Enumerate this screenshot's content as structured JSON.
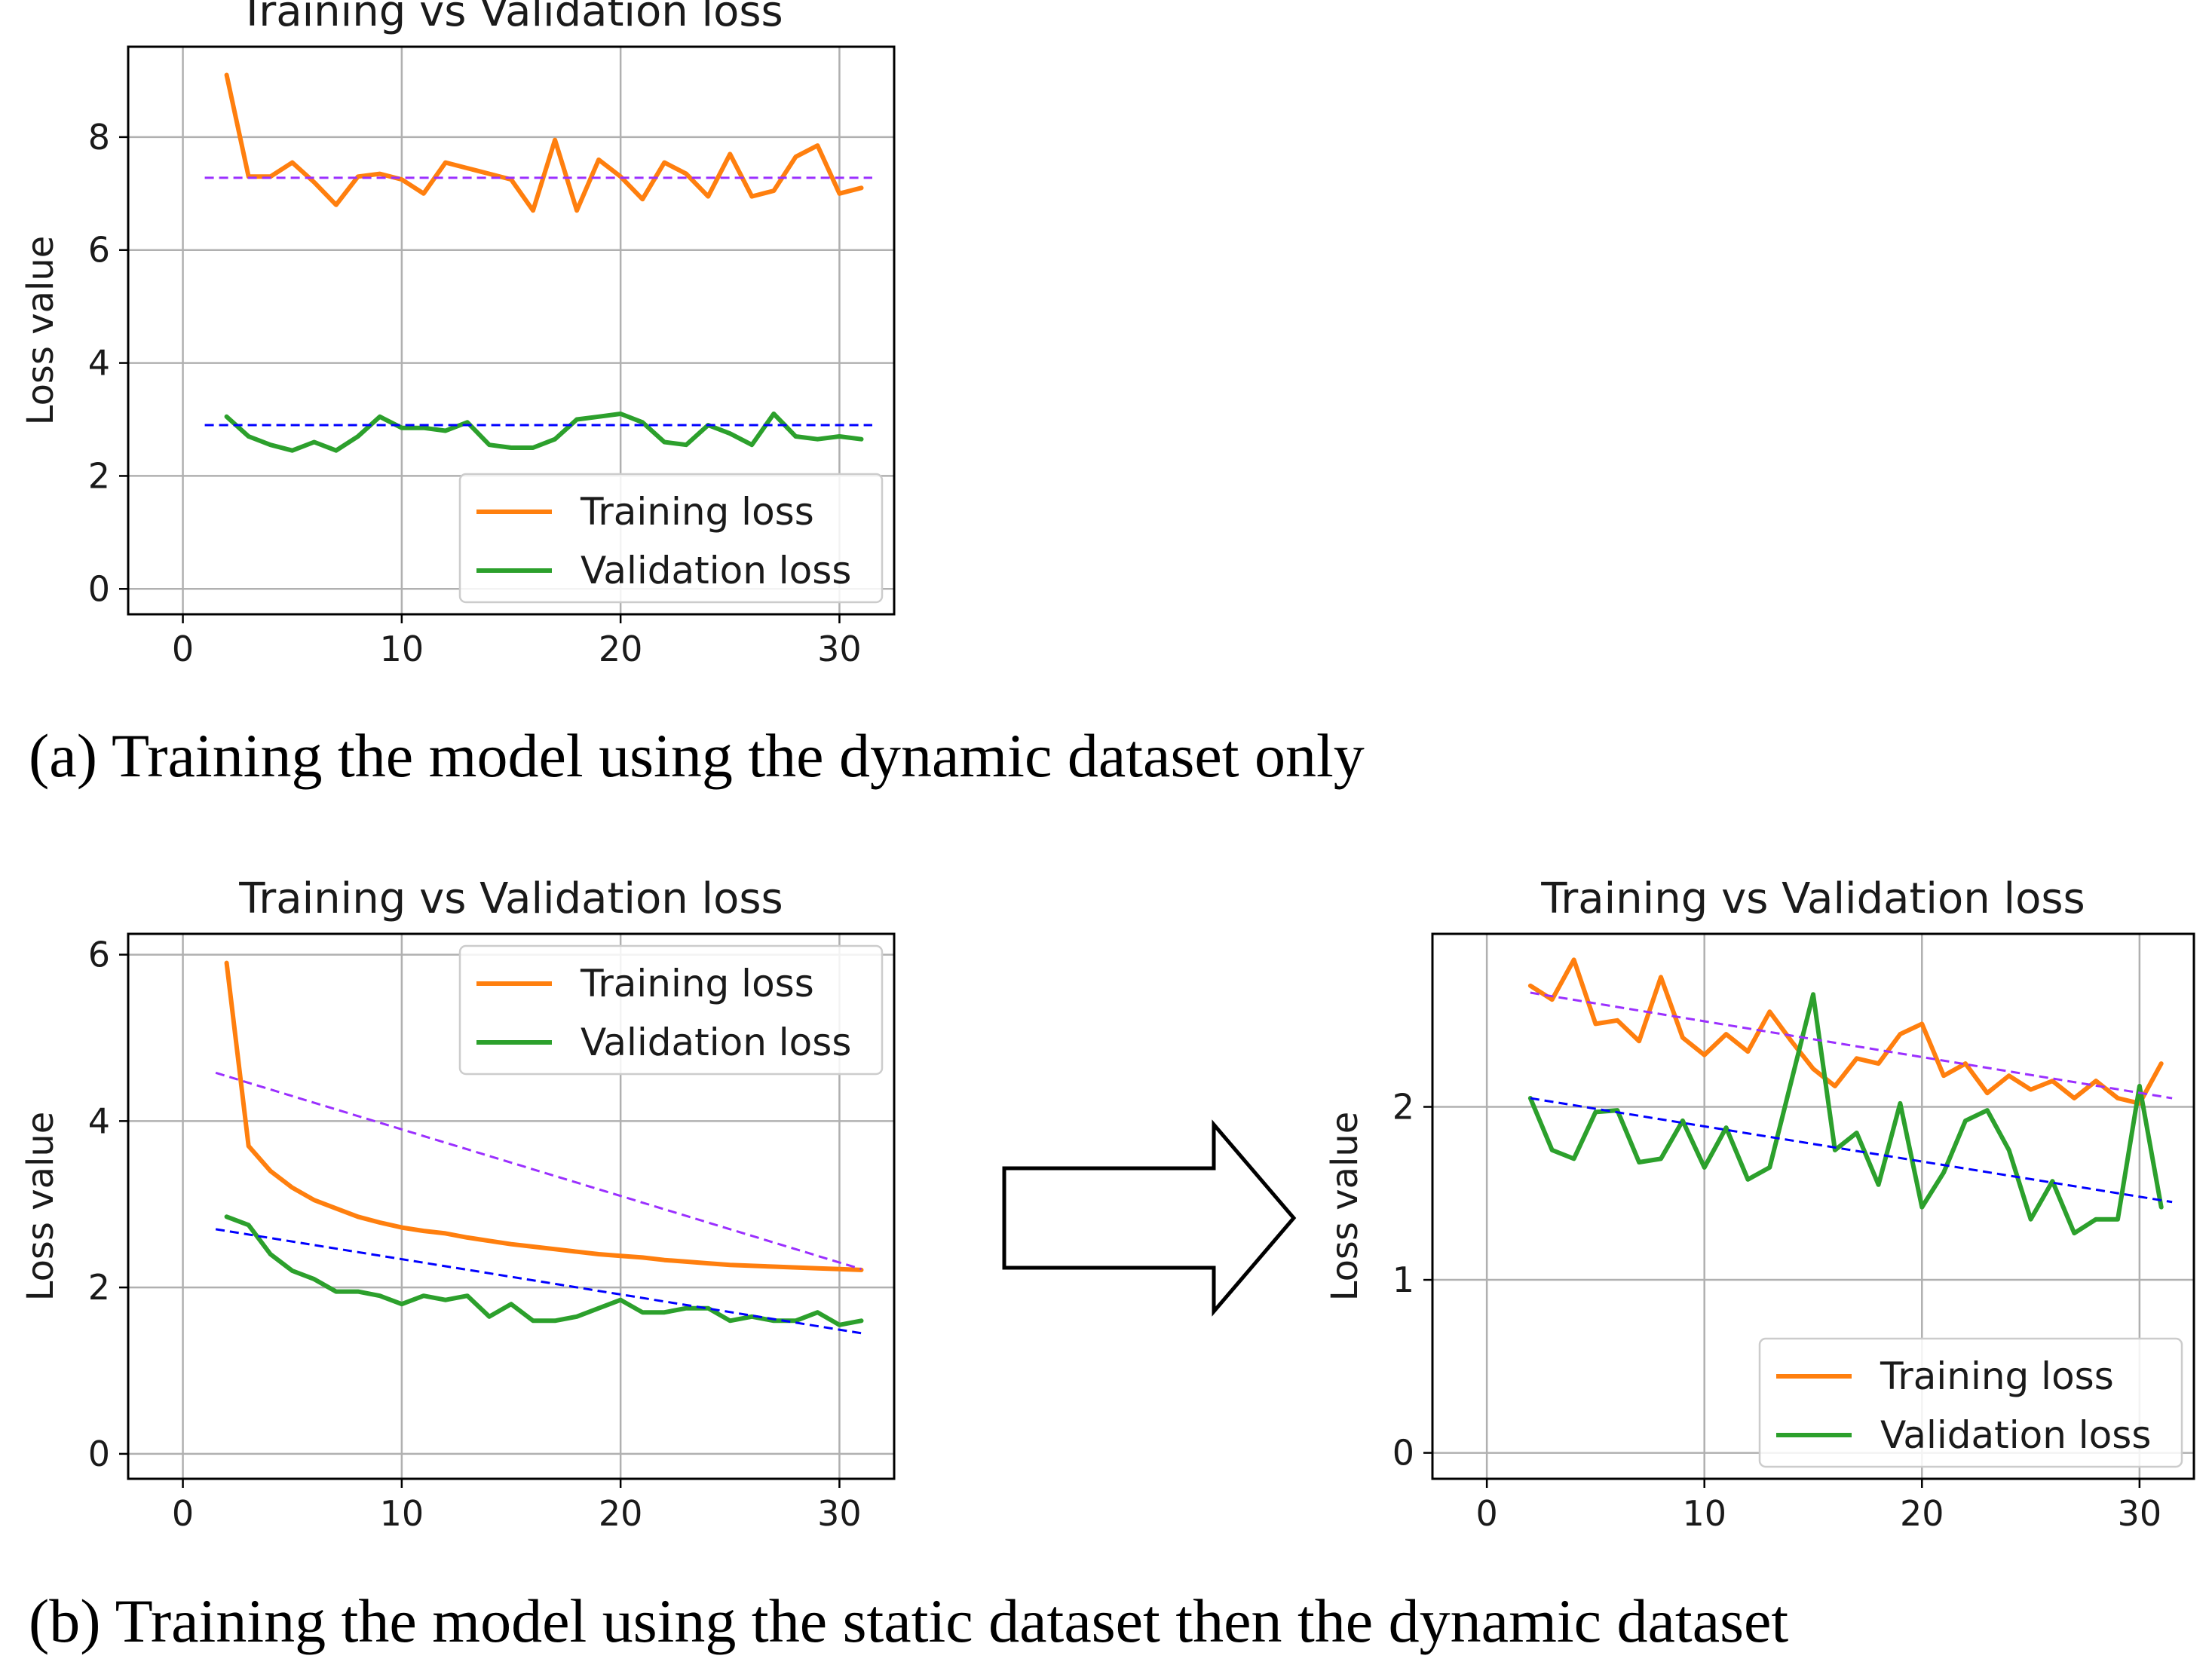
{
  "captions": {
    "a": "(a) Training the model using the dynamic dataset only",
    "b": "(b) Training the model using the static dataset then the dynamic dataset"
  },
  "colors": {
    "training": "#ff7f0e",
    "validation": "#2ca02c",
    "training_trend": "#9b30ff",
    "validation_trend": "#0000ff"
  },
  "chart_data": [
    {
      "id": "a",
      "type": "line",
      "title": "Training vs Validation loss",
      "xlabel": "",
      "ylabel": "Loss value",
      "xlim": [
        -2.5,
        32.5
      ],
      "ylim": [
        -0.45,
        9.6
      ],
      "xticks": [
        0,
        10,
        20,
        30
      ],
      "yticks": [
        0,
        2,
        4,
        6,
        8
      ],
      "grid": true,
      "legend": {
        "position": "lower-right",
        "entries": [
          "Training loss",
          "Validation loss"
        ]
      },
      "x": [
        2,
        3,
        4,
        5,
        6,
        7,
        8,
        9,
        10,
        11,
        12,
        13,
        14,
        15,
        16,
        17,
        18,
        19,
        20,
        21,
        22,
        23,
        24,
        25,
        26,
        27,
        28,
        29,
        30,
        31
      ],
      "series": [
        {
          "name": "Training loss",
          "color": "#ff7f0e",
          "values": [
            9.1,
            7.3,
            7.3,
            7.55,
            7.2,
            6.8,
            7.3,
            7.35,
            7.25,
            7.0,
            7.55,
            7.45,
            7.35,
            7.25,
            6.7,
            7.95,
            6.7,
            7.6,
            7.3,
            6.9,
            7.55,
            7.35,
            6.95,
            7.7,
            6.95,
            7.05,
            7.65,
            7.85,
            7.0,
            7.1
          ]
        },
        {
          "name": "Validation loss",
          "color": "#2ca02c",
          "values": [
            3.05,
            2.7,
            2.55,
            2.45,
            2.6,
            2.45,
            2.7,
            3.05,
            2.85,
            2.85,
            2.8,
            2.95,
            2.55,
            2.5,
            2.5,
            2.65,
            3.0,
            3.05,
            3.1,
            2.95,
            2.6,
            2.55,
            2.9,
            2.75,
            2.55,
            3.1,
            2.7,
            2.65,
            2.7,
            2.65
          ]
        }
      ],
      "trends": [
        {
          "name": "training trend",
          "color": "#9b30ff",
          "x": [
            1,
            31.5
          ],
          "y": [
            7.28,
            7.28
          ]
        },
        {
          "name": "validation trend",
          "color": "#0000ff",
          "x": [
            1,
            31.5
          ],
          "y": [
            2.9,
            2.9
          ]
        }
      ]
    },
    {
      "id": "b-left",
      "type": "line",
      "title": "Training vs Validation loss",
      "xlabel": "",
      "ylabel": "Loss value",
      "xlim": [
        -2.5,
        32.5
      ],
      "ylim": [
        -0.3,
        6.25
      ],
      "xticks": [
        0,
        10,
        20,
        30
      ],
      "yticks": [
        0,
        2,
        4,
        6
      ],
      "grid": true,
      "legend": {
        "position": "upper-right",
        "entries": [
          "Training loss",
          "Validation loss"
        ]
      },
      "x": [
        2,
        3,
        4,
        5,
        6,
        7,
        8,
        9,
        10,
        11,
        12,
        13,
        14,
        15,
        16,
        17,
        18,
        19,
        20,
        21,
        22,
        23,
        24,
        25,
        26,
        27,
        28,
        29,
        30,
        31
      ],
      "series": [
        {
          "name": "Training loss",
          "color": "#ff7f0e",
          "values": [
            5.9,
            3.7,
            3.4,
            3.2,
            3.05,
            2.95,
            2.85,
            2.78,
            2.72,
            2.68,
            2.65,
            2.6,
            2.56,
            2.52,
            2.49,
            2.46,
            2.43,
            2.4,
            2.38,
            2.36,
            2.33,
            2.31,
            2.29,
            2.27,
            2.26,
            2.25,
            2.24,
            2.23,
            2.22,
            2.21
          ]
        },
        {
          "name": "Validation loss",
          "color": "#2ca02c",
          "values": [
            2.85,
            2.75,
            2.4,
            2.2,
            2.1,
            1.95,
            1.95,
            1.9,
            1.8,
            1.9,
            1.85,
            1.9,
            1.65,
            1.8,
            1.6,
            1.6,
            1.65,
            1.75,
            1.85,
            1.7,
            1.7,
            1.75,
            1.75,
            1.6,
            1.65,
            1.6,
            1.6,
            1.7,
            1.55,
            1.6
          ]
        }
      ],
      "trends": [
        {
          "name": "training trend",
          "color": "#9b30ff",
          "x": [
            1.5,
            31
          ],
          "y": [
            4.58,
            2.22
          ]
        },
        {
          "name": "validation trend",
          "color": "#0000ff",
          "x": [
            1.5,
            31
          ],
          "y": [
            2.7,
            1.45
          ]
        }
      ]
    },
    {
      "id": "b-right",
      "type": "line",
      "title": "Training vs Validation loss",
      "xlabel": "",
      "ylabel": "Loss value",
      "xlim": [
        -2.5,
        32.5
      ],
      "ylim": [
        -0.15,
        3.0
      ],
      "xticks": [
        0,
        10,
        20,
        30
      ],
      "yticks": [
        0,
        1,
        2
      ],
      "grid": true,
      "legend": {
        "position": "lower-right",
        "entries": [
          "Training loss",
          "Validation loss"
        ]
      },
      "x": [
        2,
        3,
        4,
        5,
        6,
        7,
        8,
        9,
        10,
        11,
        12,
        13,
        14,
        15,
        16,
        17,
        18,
        19,
        20,
        21,
        22,
        23,
        24,
        25,
        26,
        27,
        28,
        29,
        30,
        31
      ],
      "series": [
        {
          "name": "Training loss",
          "color": "#ff7f0e",
          "values": [
            2.7,
            2.62,
            2.85,
            2.48,
            2.5,
            2.38,
            2.75,
            2.4,
            2.3,
            2.42,
            2.32,
            2.55,
            2.38,
            2.22,
            2.12,
            2.28,
            2.25,
            2.42,
            2.48,
            2.18,
            2.25,
            2.08,
            2.18,
            2.1,
            2.15,
            2.05,
            2.15,
            2.05,
            2.02,
            2.25
          ]
        },
        {
          "name": "Validation loss",
          "color": "#2ca02c",
          "values": [
            2.05,
            1.75,
            1.7,
            1.97,
            1.98,
            1.68,
            1.7,
            1.92,
            1.65,
            1.88,
            1.58,
            1.65,
            2.15,
            2.65,
            1.75,
            1.85,
            1.55,
            2.02,
            1.42,
            1.62,
            1.92,
            1.98,
            1.75,
            1.35,
            1.57,
            1.27,
            1.35,
            1.35,
            2.12,
            1.42
          ]
        }
      ],
      "trends": [
        {
          "name": "training trend",
          "color": "#9b30ff",
          "x": [
            2,
            31.5
          ],
          "y": [
            2.66,
            2.05
          ]
        },
        {
          "name": "validation trend",
          "color": "#0000ff",
          "x": [
            2,
            31.5
          ],
          "y": [
            2.05,
            1.45
          ]
        }
      ]
    }
  ]
}
